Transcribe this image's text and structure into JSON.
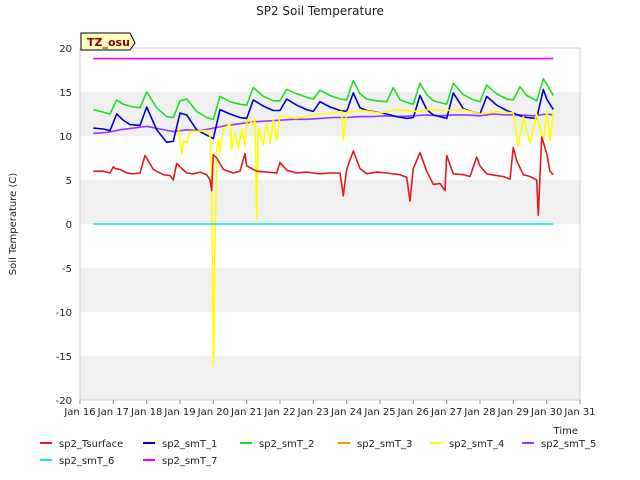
{
  "chart_data": {
    "type": "line",
    "title": "SP2 Soil Temperature",
    "xlabel": "Time",
    "ylabel": "Soil Temperature (C)",
    "site_label": "TZ_osu",
    "xlim": [
      16,
      31
    ],
    "ylim": [
      -20,
      20
    ],
    "x_ticks": [
      16,
      17,
      18,
      19,
      20,
      21,
      22,
      23,
      24,
      25,
      26,
      27,
      28,
      29,
      30,
      31
    ],
    "x_tick_labels": [
      "Jan 16",
      "Jan 17",
      "Jan 18",
      "Jan 19",
      "Jan 20",
      "Jan 21",
      "Jan 22",
      "Jan 23",
      "Jan 24",
      "Jan 25",
      "Jan 26",
      "Jan 27",
      "Jan 28",
      "Jan 29",
      "Jan 30",
      "Jan 31"
    ],
    "y_ticks": [
      -20,
      -15,
      -10,
      -5,
      0,
      5,
      10,
      15,
      20
    ],
    "y_tick_labels": [
      "-20",
      "-15",
      "-10",
      "-5",
      "0",
      "5",
      "10",
      "15",
      "20"
    ],
    "grid": "horizontal bands",
    "legend_placement": "bottom",
    "series": [
      {
        "name": "sp2_Tsurface",
        "color": "#e31a1c",
        "x": [
          16.4,
          16.7,
          16.9,
          17.0,
          17.05,
          17.2,
          17.4,
          17.6,
          17.8,
          17.95,
          18.2,
          18.5,
          18.7,
          18.8,
          18.9,
          19.0,
          19.2,
          19.4,
          19.6,
          19.8,
          19.9,
          19.95,
          20.0,
          20.1,
          20.3,
          20.6,
          20.8,
          20.95,
          21.0,
          21.3,
          21.6,
          21.9,
          22.0,
          22.2,
          22.5,
          22.8,
          23.0,
          23.2,
          23.5,
          23.8,
          23.9,
          24.0,
          24.2,
          24.4,
          24.6,
          24.9,
          25.2,
          25.6,
          25.8,
          25.9,
          26.0,
          26.2,
          26.4,
          26.6,
          26.8,
          26.95,
          27.0,
          27.2,
          27.5,
          27.7,
          27.9,
          28.0,
          28.2,
          28.5,
          28.7,
          28.9,
          29.0,
          29.1,
          29.3,
          29.5,
          29.7,
          29.75,
          29.85,
          30.0,
          30.1,
          30.2
        ],
        "values": [
          6.0,
          6.0,
          5.8,
          6.5,
          6.3,
          6.2,
          5.8,
          5.7,
          5.8,
          7.8,
          6.2,
          5.6,
          5.5,
          5.0,
          6.9,
          6.5,
          5.8,
          5.7,
          5.9,
          5.6,
          5.0,
          3.8,
          7.9,
          7.5,
          6.2,
          5.8,
          6.0,
          8.0,
          6.6,
          6.0,
          5.9,
          5.8,
          7.0,
          6.1,
          5.8,
          5.9,
          5.8,
          5.7,
          5.8,
          5.8,
          3.2,
          6.2,
          8.3,
          6.3,
          5.7,
          5.9,
          5.8,
          5.6,
          5.3,
          2.6,
          6.3,
          8.1,
          6.0,
          4.5,
          4.6,
          3.8,
          7.8,
          5.7,
          5.6,
          5.4,
          7.6,
          6.6,
          5.7,
          5.5,
          5.4,
          5.1,
          8.7,
          7.2,
          5.6,
          5.4,
          5.0,
          1.0,
          9.9,
          8.0,
          6.0,
          5.6
        ]
      },
      {
        "name": "sp2_smT_1",
        "color": "#0000cc",
        "x": [
          16.4,
          16.7,
          16.9,
          17.1,
          17.3,
          17.5,
          17.8,
          18.0,
          18.3,
          18.6,
          18.8,
          19.0,
          19.2,
          19.5,
          19.8,
          20.0,
          20.2,
          20.5,
          20.8,
          21.0,
          21.2,
          21.5,
          21.8,
          22.0,
          22.2,
          22.5,
          22.8,
          23.0,
          23.2,
          23.5,
          23.8,
          24.0,
          24.2,
          24.4,
          24.6,
          24.9,
          25.2,
          25.5,
          25.8,
          26.0,
          26.2,
          26.4,
          26.6,
          26.9,
          27.0,
          27.2,
          27.5,
          27.8,
          28.0,
          28.2,
          28.5,
          28.8,
          29.0,
          29.2,
          29.4,
          29.7,
          29.9,
          30.0,
          30.2
        ],
        "values": [
          10.9,
          10.8,
          10.6,
          12.5,
          11.8,
          11.3,
          11.2,
          13.3,
          10.7,
          9.3,
          9.4,
          12.6,
          12.4,
          10.7,
          10.1,
          9.7,
          13.0,
          12.5,
          12.1,
          12.0,
          14.1,
          13.4,
          12.9,
          12.9,
          14.2,
          13.5,
          13.0,
          12.8,
          13.9,
          13.3,
          12.9,
          12.8,
          14.9,
          13.2,
          12.9,
          12.7,
          12.5,
          12.2,
          12.0,
          12.1,
          14.6,
          13.0,
          12.4,
          12.1,
          12.0,
          14.9,
          13.1,
          12.7,
          12.5,
          14.5,
          13.5,
          12.9,
          12.6,
          12.3,
          12.1,
          12.0,
          15.3,
          14.2,
          13.0
        ]
      },
      {
        "name": "sp2_smT_2",
        "color": "#22dd22",
        "x": [
          16.4,
          16.7,
          16.9,
          17.1,
          17.3,
          17.6,
          17.8,
          18.0,
          18.3,
          18.6,
          18.8,
          19.0,
          19.2,
          19.5,
          19.8,
          20.0,
          20.2,
          20.5,
          20.8,
          21.0,
          21.2,
          21.5,
          21.8,
          22.0,
          22.2,
          22.5,
          22.8,
          23.0,
          23.2,
          23.5,
          23.8,
          24.0,
          24.2,
          24.4,
          24.6,
          24.9,
          25.2,
          25.4,
          25.6,
          25.9,
          26.0,
          26.2,
          26.4,
          26.6,
          26.9,
          27.0,
          27.2,
          27.5,
          27.8,
          28.0,
          28.2,
          28.5,
          28.8,
          29.0,
          29.2,
          29.4,
          29.7,
          29.9,
          30.0,
          30.2
        ],
        "values": [
          13.0,
          12.7,
          12.5,
          14.1,
          13.6,
          13.3,
          13.2,
          15.0,
          13.2,
          12.2,
          12.1,
          14.0,
          14.2,
          12.8,
          12.1,
          11.9,
          14.5,
          13.9,
          13.6,
          13.5,
          15.5,
          14.5,
          14.0,
          14.0,
          15.3,
          14.8,
          14.4,
          14.2,
          15.2,
          14.6,
          14.2,
          14.1,
          16.3,
          14.8,
          14.2,
          14.0,
          13.9,
          15.5,
          14.1,
          13.7,
          13.6,
          16.0,
          14.7,
          14.0,
          13.7,
          13.6,
          16.0,
          14.7,
          14.1,
          13.9,
          15.8,
          14.8,
          14.2,
          14.1,
          15.6,
          14.6,
          14.0,
          16.5,
          15.9,
          14.6
        ]
      },
      {
        "name": "sp2_smT_3",
        "color": "#ff9900",
        "x": [],
        "values": []
      },
      {
        "name": "sp2_smT_4",
        "color": "#ffff00",
        "x": [
          18.95,
          19.05,
          19.1,
          19.2,
          19.3,
          19.8,
          19.9,
          19.95,
          20.0,
          20.05,
          20.1,
          20.15,
          20.2,
          20.3,
          20.4,
          20.5,
          20.55,
          20.65,
          20.75,
          20.85,
          20.95,
          21.0,
          21.05,
          21.2,
          21.25,
          21.3,
          21.35,
          21.5,
          21.6,
          21.7,
          21.8,
          21.9,
          22.0,
          22.5,
          23.0,
          23.5,
          23.85,
          23.9,
          24.0,
          24.5,
          25.0,
          25.5,
          26.0,
          26.5,
          27.0,
          27.5,
          28.0,
          28.5,
          29.0,
          29.15,
          29.3,
          29.5,
          29.7,
          29.9,
          30.0,
          30.1,
          30.2
        ],
        "values": [
          11.0,
          8.0,
          9.5,
          9.2,
          10.5,
          10.6,
          10.0,
          5.0,
          -16.0,
          -3.0,
          8.5,
          9.6,
          8.2,
          10.8,
          11.0,
          11.5,
          8.5,
          10.2,
          8.6,
          10.8,
          9.0,
          11.6,
          12.0,
          11.2,
          12.0,
          0.6,
          11.0,
          9.0,
          11.5,
          9.2,
          11.8,
          9.5,
          12.3,
          12.0,
          12.4,
          12.6,
          12.8,
          9.5,
          12.7,
          12.9,
          12.6,
          13.0,
          12.8,
          13.0,
          12.9,
          13.0,
          12.5,
          12.8,
          12.6,
          8.8,
          12.2,
          9.2,
          12.5,
          9.3,
          12.9,
          9.5,
          12.7
        ]
      },
      {
        "name": "sp2_smT_5",
        "color": "#9933ff",
        "x": [
          16.4,
          16.8,
          17.2,
          17.6,
          18.0,
          18.4,
          18.8,
          19.2,
          19.6,
          20.0,
          20.4,
          20.8,
          21.2,
          21.6,
          22.0,
          22.4,
          22.8,
          23.2,
          23.6,
          24.0,
          24.4,
          24.8,
          25.2,
          25.6,
          26.0,
          26.4,
          26.8,
          27.2,
          27.6,
          28.0,
          28.4,
          28.8,
          29.2,
          29.6,
          30.0,
          30.2
        ],
        "values": [
          10.3,
          10.4,
          10.7,
          10.9,
          11.1,
          10.8,
          10.5,
          10.7,
          10.6,
          10.9,
          11.2,
          11.4,
          11.6,
          11.7,
          11.8,
          11.9,
          11.9,
          12.0,
          12.1,
          12.1,
          12.2,
          12.2,
          12.3,
          12.2,
          12.3,
          12.4,
          12.3,
          12.4,
          12.4,
          12.3,
          12.5,
          12.4,
          12.4,
          12.3,
          12.5,
          12.4
        ]
      },
      {
        "name": "sp2_smT_6",
        "color": "#00eeee",
        "x": [
          16.4,
          30.2
        ],
        "values": [
          0.0,
          0.0
        ]
      },
      {
        "name": "sp2_smT_7",
        "color": "#ee00ee",
        "x": [
          16.4,
          30.2
        ],
        "values": [
          18.8,
          18.8
        ]
      }
    ]
  }
}
